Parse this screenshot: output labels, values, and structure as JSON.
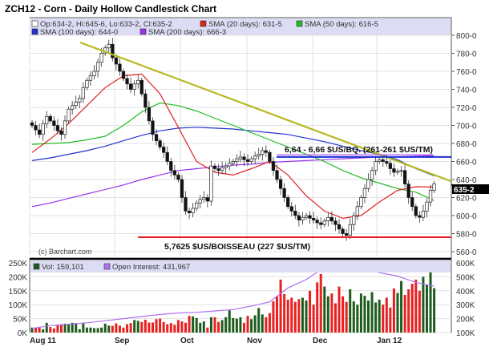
{
  "chart_data": [
    {
      "type": "candlestick",
      "title": "ZCH12 - Corn - Daily Hollow Candlestick Chart",
      "legend": {
        "ohlc": "Op:634-2, Hi:645-6, Lo:633-2, Cl:635-2",
        "sma20": "SMA (20 days): 631-5",
        "sma50": "SMA (50 days): 616-5",
        "sma100": "SMA (100 days): 644-0",
        "sma200": "SMA (200 days): 666-3"
      },
      "last_price_label": "635-2",
      "y_ticks": [
        "560-0",
        "580-0",
        "600-0",
        "620-0",
        "640-0",
        "660-0",
        "680-0",
        "700-0",
        "720-0",
        "740-0",
        "760-0",
        "780-0",
        "800-0"
      ],
      "ylim": [
        560,
        800
      ],
      "x_ticks": [
        "Aug 11",
        "Sep",
        "Oct",
        "Nov",
        "Dec",
        "Jan 12"
      ],
      "grid": true,
      "closes": [
        700,
        695,
        690,
        702,
        710,
        705,
        700,
        694,
        690,
        705,
        718,
        722,
        726,
        730,
        742,
        750,
        755,
        760,
        770,
        780,
        786,
        790,
        775,
        768,
        760,
        752,
        746,
        740,
        746,
        750,
        735,
        720,
        705,
        690,
        683,
        676,
        670,
        660,
        650,
        645,
        640,
        620,
        605,
        603,
        608,
        614,
        618,
        620,
        616,
        655,
        652,
        650,
        653,
        655,
        658,
        660,
        663,
        665,
        662,
        660,
        663,
        666,
        668,
        672,
        670,
        660,
        650,
        640,
        630,
        620,
        610,
        605,
        600,
        595,
        598,
        600,
        597,
        595,
        592,
        590,
        594,
        598,
        594,
        590,
        585,
        580,
        578,
        590,
        600,
        610,
        620,
        630,
        640,
        650,
        660,
        662,
        660,
        658,
        652,
        648,
        649,
        650,
        635,
        620,
        610,
        600,
        598,
        605,
        615,
        628,
        635.25
      ],
      "sma_weekly": {
        "sma20": [
          670,
          685,
          702,
          722,
          742,
          755,
          757,
          735,
          698,
          660,
          648,
          645,
          652,
          660,
          645,
          622,
          605,
          597,
          600,
          615,
          628,
          632,
          631.6
        ],
        "sma50": [
          679,
          680,
          681,
          684,
          688,
          700,
          715,
          725,
          722,
          716,
          708,
          700,
          692,
          684,
          676,
          668,
          660,
          650,
          642,
          636,
          630,
          626,
          616.6
        ],
        "sma100": [
          661,
          664,
          668,
          672,
          677,
          683,
          689,
          694,
          697,
          698,
          697,
          696,
          694,
          692,
          690,
          686,
          682,
          677,
          672,
          668,
          662,
          652,
          644
        ],
        "sma200": [
          610,
          614,
          619,
          624,
          629,
          634,
          640,
          645,
          650,
          652,
          654,
          656,
          657,
          659,
          660,
          661,
          662,
          663,
          664,
          665,
          665,
          666,
          666.4
        ]
      },
      "colors": {
        "sma20": "#e02020",
        "sma50": "#22bb22",
        "sma100": "#2233cc",
        "sma200": "#9933ee",
        "trendline": "#b8b820",
        "support": "#e82020",
        "resistance": "#1a2fd0",
        "legend_bg": "#dcdcf4"
      },
      "annotations": {
        "resistance": {
          "label": "6,64 - 6,66 $US/BQ. (261-261 $US/TM)",
          "value": 665
        },
        "support": {
          "label": "5,7625 $US/BOISSEAU (227 $US/TM)",
          "value": 576
        },
        "trendline": {
          "from": 792,
          "to": 638
        }
      },
      "watermark": "(c) Barchart.com"
    },
    {
      "type": "bar",
      "legend": {
        "volume": "Vol: 159,101",
        "open_interest": "Open Interest: 431,967"
      },
      "y_ticks_left": [
        "0K",
        "50K",
        "100K",
        "150K",
        "200K",
        "250K"
      ],
      "y_ticks_right": [
        "100K",
        "200K",
        "300K",
        "400K",
        "500K",
        "600K"
      ],
      "ylim_left": [
        0,
        250
      ],
      "ylim_right": [
        100,
        600
      ],
      "volume_k": [
        18,
        18,
        18,
        12,
        35,
        20,
        15,
        28,
        30,
        32,
        30,
        35,
        34,
        12,
        34,
        18,
        18,
        16,
        16,
        18,
        32,
        25,
        24,
        33,
        25,
        18,
        30,
        34,
        45,
        42,
        38,
        46,
        36,
        36,
        48,
        50,
        38,
        30,
        34,
        28,
        45,
        40,
        35,
        60,
        58,
        52,
        35,
        40,
        18,
        55,
        55,
        38,
        45,
        55,
        80,
        52,
        50,
        55,
        35,
        60,
        48,
        62,
        88,
        65,
        55,
        70,
        112,
        130,
        190,
        138,
        118,
        125,
        110,
        120,
        125,
        115,
        150,
        100,
        180,
        210,
        165,
        130,
        140,
        105,
        165,
        130,
        110,
        155,
        112,
        100,
        140,
        132,
        115,
        145,
        108,
        118,
        100,
        125,
        90,
        158,
        142,
        185,
        135,
        155,
        175,
        190,
        150,
        200,
        170,
        218,
        159.1
      ],
      "open_interest_weekly_k": [
        130,
        150,
        160,
        170,
        185,
        200,
        215,
        230,
        240,
        245,
        255,
        265,
        290,
        320,
        420,
        480,
        570,
        565,
        560,
        530,
        505,
        460,
        432
      ],
      "colors": {
        "up": "#1e5c1e",
        "down": "#e82020",
        "open_interest": "#b070f0"
      }
    }
  ]
}
